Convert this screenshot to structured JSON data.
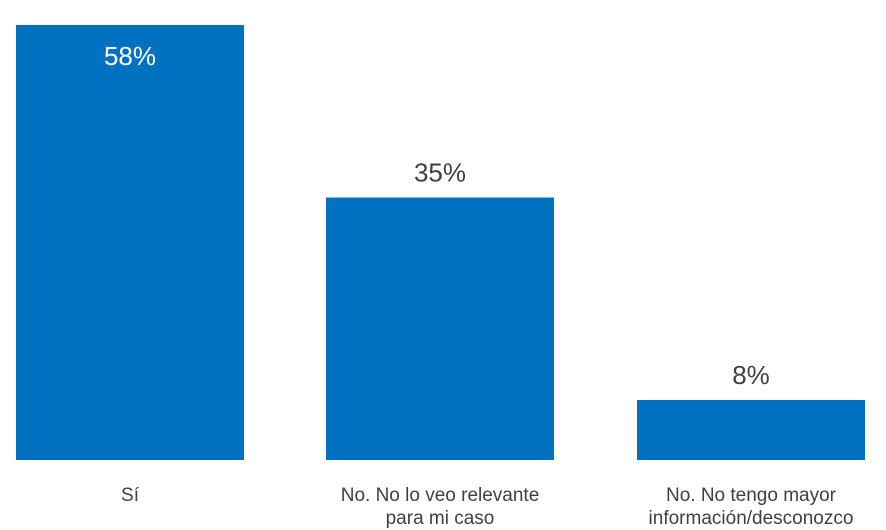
{
  "chart_data": {
    "type": "bar",
    "categories": [
      [
        "Sí"
      ],
      [
        "No. No lo veo relevante",
        "para mi caso"
      ],
      [
        "No. No tengo mayor",
        "información/desconozco"
      ]
    ],
    "values": [
      58,
      35,
      8
    ],
    "data_labels": [
      "58%",
      "35%",
      "8%"
    ],
    "title": "",
    "xlabel": "",
    "ylabel": "",
    "ylim": [
      0,
      58
    ],
    "grid": false,
    "legend": "none",
    "colors": {
      "bar": "#0070C0",
      "label_inside": "#FFFFFF",
      "label_outside": "#404040",
      "category_text": "#404040"
    }
  }
}
